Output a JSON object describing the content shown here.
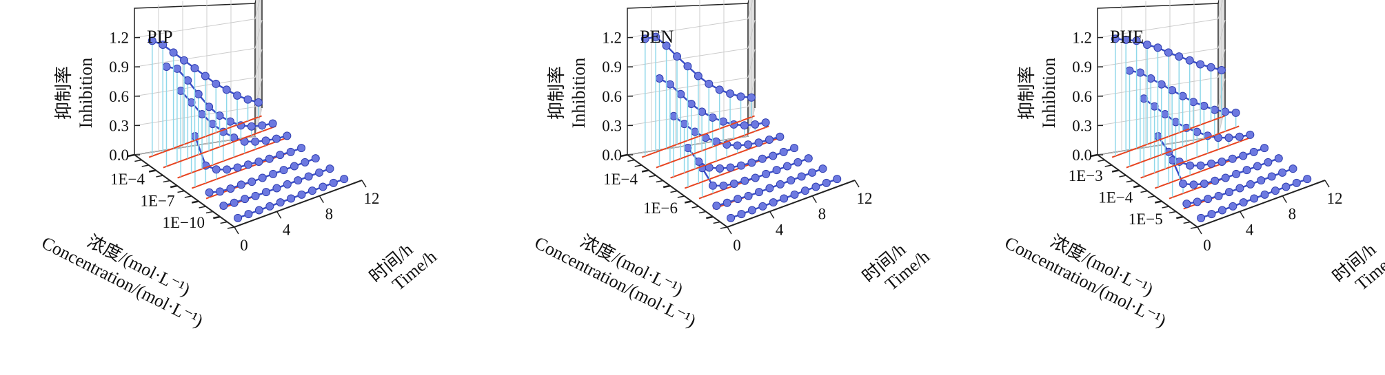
{
  "figure": {
    "colors": {
      "series_line": "#3a4fc8",
      "marker": "#6d79e0",
      "marker_edge": "#2f3eb0",
      "drop_line": "#8fd8ea",
      "floor_line": "#e8431f",
      "grid": "#cccccc",
      "frame": "#222222"
    }
  },
  "chart_data": [
    {
      "type": "3d-line",
      "title": "PIP",
      "zlabel": [
        "抑制率",
        "Inhibition"
      ],
      "xlabel": [
        "浓度/(mol·L⁻¹)",
        "Concentration/(mol·L⁻¹)"
      ],
      "ylabel": [
        "时间/h",
        "Time/h"
      ],
      "z_ticks": [
        "0.0",
        "0.3",
        "0.6",
        "0.9",
        "1.2"
      ],
      "zlim": [
        0,
        1.5
      ],
      "time_ticks": [
        "0",
        "4",
        "8",
        "12"
      ],
      "time_range": [
        0,
        12
      ],
      "concentration_tick_labels": [
        "1E−4",
        "1E−7",
        "1E−10"
      ],
      "concentration_tick_positions": [
        0.2,
        0.5,
        0.8
      ],
      "series": [
        {
          "concentration_pos": 0.1,
          "time": [
            1,
            2,
            3,
            4,
            5,
            6,
            7,
            8,
            9,
            10,
            11
          ],
          "inhibition": [
            0.0,
            0.0,
            0.0,
            0.0,
            0.0,
            0.0,
            0.0,
            0.0,
            0.0,
            0.0,
            0.0
          ]
        },
        {
          "concentration_pos": 0.3,
          "time": [
            1,
            2,
            3,
            4,
            5,
            6,
            7,
            8,
            9,
            10,
            11
          ],
          "inhibition": [
            0.02,
            0.01,
            0.01,
            0.0,
            0.0,
            0.0,
            0.0,
            0.0,
            0.0,
            0.0,
            0.0
          ]
        },
        {
          "concentration_pos": 0.5,
          "time": [
            1,
            2,
            3,
            4,
            5,
            6,
            7,
            8,
            9,
            10,
            11
          ],
          "inhibition": [
            0.05,
            0.02,
            0.01,
            0.01,
            0.0,
            0.0,
            0.0,
            0.0,
            0.0,
            0.0,
            0.0
          ]
        },
        {
          "concentration_pos": 0.7,
          "time": [
            1,
            2,
            3,
            4,
            5,
            6,
            7,
            8,
            9,
            10,
            11
          ],
          "inhibition": [
            0.52,
            0.18,
            0.1,
            0.06,
            0.04,
            0.03,
            0.02,
            0.01,
            0.01,
            0.0,
            0.0
          ]
        },
        {
          "concentration_pos": 0.9,
          "time": [
            1,
            2,
            3,
            4,
            5,
            6,
            7,
            8,
            9,
            10,
            11
          ],
          "inhibition": [
            0.88,
            0.72,
            0.56,
            0.42,
            0.3,
            0.2,
            0.12,
            0.08,
            0.05,
            0.03,
            0.02
          ]
        },
        {
          "concentration_pos": 1.1,
          "time": [
            1,
            2,
            3,
            4,
            5,
            6,
            7,
            8,
            9,
            10,
            11
          ],
          "inhibition": [
            1.02,
            0.96,
            0.8,
            0.62,
            0.45,
            0.32,
            0.22,
            0.14,
            0.09,
            0.06,
            0.04
          ]
        },
        {
          "concentration_pos": 1.3,
          "time": [
            1,
            2,
            3,
            4,
            5,
            6,
            7,
            8,
            9,
            10,
            11
          ],
          "inhibition": [
            1.18,
            1.1,
            0.98,
            0.86,
            0.74,
            0.62,
            0.5,
            0.4,
            0.3,
            0.22,
            0.15
          ]
        }
      ]
    },
    {
      "type": "3d-line",
      "title": "PEN",
      "zlabel": [
        "抑制率",
        "Inhibition"
      ],
      "xlabel": [
        "浓度/(mol·L⁻¹)",
        "Concentration/(mol·L⁻¹)"
      ],
      "ylabel": [
        "时间/h",
        "Time/h"
      ],
      "z_ticks": [
        "0.0",
        "0.3",
        "0.6",
        "0.9",
        "1.2"
      ],
      "zlim": [
        0,
        1.5
      ],
      "time_ticks": [
        "0",
        "4",
        "8",
        "12"
      ],
      "time_range": [
        0,
        12
      ],
      "concentration_tick_labels": [
        "1E−4",
        "1E−6"
      ],
      "concentration_tick_positions": [
        0.2,
        0.6
      ],
      "series": [
        {
          "concentration_pos": 0.1,
          "time": [
            1,
            2,
            3,
            4,
            5,
            6,
            7,
            8,
            9,
            10,
            11
          ],
          "inhibition": [
            0.0,
            0.0,
            0.0,
            0.0,
            0.0,
            0.0,
            0.0,
            0.0,
            0.0,
            0.0,
            0.0
          ]
        },
        {
          "concentration_pos": 0.3,
          "time": [
            1,
            2,
            3,
            4,
            5,
            6,
            7,
            8,
            9,
            10,
            11
          ],
          "inhibition": [
            0.02,
            0.01,
            0.01,
            0.0,
            0.0,
            0.0,
            0.0,
            0.0,
            0.0,
            0.0,
            0.0
          ]
        },
        {
          "concentration_pos": 0.5,
          "time": [
            1,
            2,
            3,
            4,
            5,
            6,
            7,
            8,
            9,
            10,
            11
          ],
          "inhibition": [
            0.3,
            0.08,
            0.04,
            0.02,
            0.01,
            0.0,
            0.0,
            0.0,
            0.0,
            0.0,
            0.0
          ]
        },
        {
          "concentration_pos": 0.7,
          "time": [
            1,
            2,
            3,
            4,
            5,
            6,
            7,
            8,
            9,
            10,
            11
          ],
          "inhibition": [
            0.4,
            0.22,
            0.12,
            0.07,
            0.04,
            0.02,
            0.01,
            0.01,
            0.0,
            0.0,
            0.0
          ]
        },
        {
          "concentration_pos": 0.9,
          "time": [
            1,
            2,
            3,
            4,
            5,
            6,
            7,
            8,
            9,
            10,
            11
          ],
          "inhibition": [
            0.62,
            0.5,
            0.38,
            0.28,
            0.2,
            0.13,
            0.08,
            0.05,
            0.03,
            0.02,
            0.01
          ]
        },
        {
          "concentration_pos": 1.1,
          "time": [
            1,
            2,
            3,
            4,
            5,
            6,
            7,
            8,
            9,
            10,
            11
          ],
          "inhibition": [
            0.9,
            0.8,
            0.66,
            0.52,
            0.4,
            0.3,
            0.22,
            0.15,
            0.1,
            0.07,
            0.05
          ]
        },
        {
          "concentration_pos": 1.3,
          "time": [
            1,
            2,
            3,
            4,
            5,
            6,
            7,
            8,
            9,
            10,
            11
          ],
          "inhibition": [
            1.2,
            1.18,
            1.05,
            0.9,
            0.76,
            0.62,
            0.5,
            0.4,
            0.32,
            0.25,
            0.2
          ]
        }
      ]
    },
    {
      "type": "3d-line",
      "title": "PHE",
      "zlabel": [
        "抑制率",
        "Inhibition"
      ],
      "xlabel": [
        "浓度/(mol·L⁻¹)",
        "Concentration/(mol·L⁻¹)"
      ],
      "ylabel": [
        "时间/h",
        "Time/h"
      ],
      "z_ticks": [
        "0.0",
        "0.3",
        "0.6",
        "0.9",
        "1.2"
      ],
      "zlim": [
        0,
        1.5
      ],
      "time_ticks": [
        "0",
        "4",
        "8",
        "12"
      ],
      "time_range": [
        0,
        12
      ],
      "concentration_tick_labels": [
        "1E−3",
        "1E−4",
        "1E−5"
      ],
      "concentration_tick_positions": [
        0.15,
        0.45,
        0.75
      ],
      "series": [
        {
          "concentration_pos": 0.1,
          "time": [
            1,
            2,
            3,
            4,
            5,
            6,
            7,
            8,
            9,
            10,
            11
          ],
          "inhibition": [
            0.0,
            0.0,
            0.0,
            0.0,
            0.0,
            0.0,
            0.0,
            0.0,
            0.0,
            0.0,
            0.0
          ]
        },
        {
          "concentration_pos": 0.3,
          "time": [
            1,
            2,
            3,
            4,
            5,
            6,
            7,
            8,
            9,
            10,
            11
          ],
          "inhibition": [
            0.04,
            0.02,
            0.01,
            0.0,
            0.0,
            0.0,
            0.0,
            0.0,
            0.0,
            0.0,
            0.0
          ]
        },
        {
          "concentration_pos": 0.5,
          "time": [
            1,
            2,
            3,
            4,
            5,
            6,
            7,
            8,
            9,
            10,
            11
          ],
          "inhibition": [
            0.38,
            0.1,
            0.05,
            0.02,
            0.01,
            0.0,
            0.0,
            0.0,
            0.0,
            0.0,
            0.0
          ]
        },
        {
          "concentration_pos": 0.7,
          "time": [
            1,
            2,
            3,
            4,
            5,
            6,
            7,
            8,
            9,
            10,
            11
          ],
          "inhibition": [
            0.52,
            0.32,
            0.18,
            0.1,
            0.06,
            0.04,
            0.02,
            0.01,
            0.0,
            0.0,
            0.0
          ]
        },
        {
          "concentration_pos": 0.9,
          "time": [
            1,
            2,
            3,
            4,
            5,
            6,
            7,
            8,
            9,
            10,
            11
          ],
          "inhibition": [
            0.8,
            0.68,
            0.56,
            0.44,
            0.34,
            0.26,
            0.18,
            0.12,
            0.08,
            0.05,
            0.03
          ]
        },
        {
          "concentration_pos": 1.1,
          "time": [
            1,
            2,
            3,
            4,
            5,
            6,
            7,
            8,
            9,
            10,
            11
          ],
          "inhibition": [
            0.98,
            0.92,
            0.82,
            0.72,
            0.62,
            0.52,
            0.42,
            0.34,
            0.26,
            0.2,
            0.15
          ]
        },
        {
          "concentration_pos": 1.3,
          "time": [
            1,
            2,
            3,
            4,
            5,
            6,
            7,
            8,
            9,
            10,
            11
          ],
          "inhibition": [
            1.2,
            1.15,
            1.1,
            1.02,
            0.95,
            0.86,
            0.78,
            0.7,
            0.62,
            0.55,
            0.48
          ]
        }
      ]
    }
  ]
}
